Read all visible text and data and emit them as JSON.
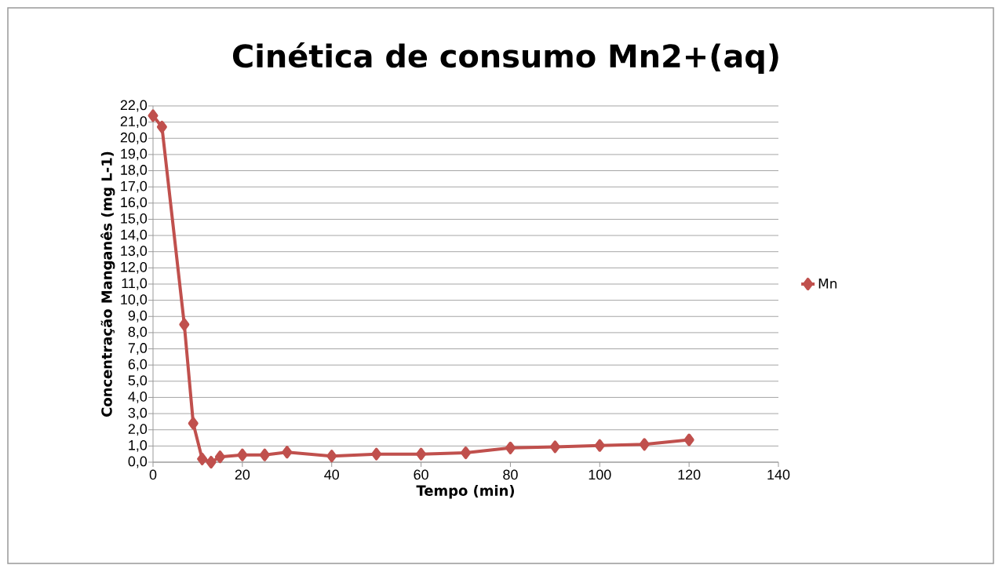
{
  "chart_data": {
    "type": "line",
    "title": "Cinética de consumo Mn2+(aq)",
    "xlabel": "Tempo (min)",
    "ylabel": "Concentração Manganês (mg L-1)",
    "x": [
      0,
      2,
      7,
      9,
      11,
      13,
      15,
      20,
      25,
      30,
      40,
      50,
      60,
      70,
      80,
      90,
      100,
      110,
      120
    ],
    "series": [
      {
        "name": "Mn",
        "color": "#c0504d",
        "values": [
          21.4,
          20.7,
          8.5,
          2.4,
          0.2,
          0.0,
          0.33,
          0.45,
          0.45,
          0.62,
          0.38,
          0.5,
          0.5,
          0.58,
          0.88,
          0.95,
          1.03,
          1.1,
          1.38
        ]
      }
    ],
    "xlim": [
      0,
      140
    ],
    "xticks": [
      0,
      20,
      40,
      60,
      80,
      100,
      120,
      140
    ],
    "ylim": [
      0,
      22
    ],
    "yticks": [
      {
        "value": 0,
        "label": "0,0"
      },
      {
        "value": 1,
        "label": "1,0"
      },
      {
        "value": 2,
        "label": "2,0"
      },
      {
        "value": 3,
        "label": "3,0"
      },
      {
        "value": 4,
        "label": "4,0"
      },
      {
        "value": 5,
        "label": "5,0"
      },
      {
        "value": 6,
        "label": "6,0"
      },
      {
        "value": 7,
        "label": "7,0"
      },
      {
        "value": 8,
        "label": "8,0"
      },
      {
        "value": 9,
        "label": "9,0"
      },
      {
        "value": 10,
        "label": "10,0"
      },
      {
        "value": 11,
        "label": "11,0"
      },
      {
        "value": 12,
        "label": "12,0"
      },
      {
        "value": 13,
        "label": "13,0"
      },
      {
        "value": 14,
        "label": "14,0"
      },
      {
        "value": 15,
        "label": "15,0"
      },
      {
        "value": 16,
        "label": "16,0"
      },
      {
        "value": 17,
        "label": "17,0"
      },
      {
        "value": 18,
        "label": "18,0"
      },
      {
        "value": 19,
        "label": "19,0"
      },
      {
        "value": 20,
        "label": "20,0"
      },
      {
        "value": 21,
        "label": "21,0"
      },
      {
        "value": 22,
        "label": "22,0"
      }
    ],
    "grid": "y",
    "legend": "right",
    "marker": "diamond",
    "line_style": "solid"
  }
}
